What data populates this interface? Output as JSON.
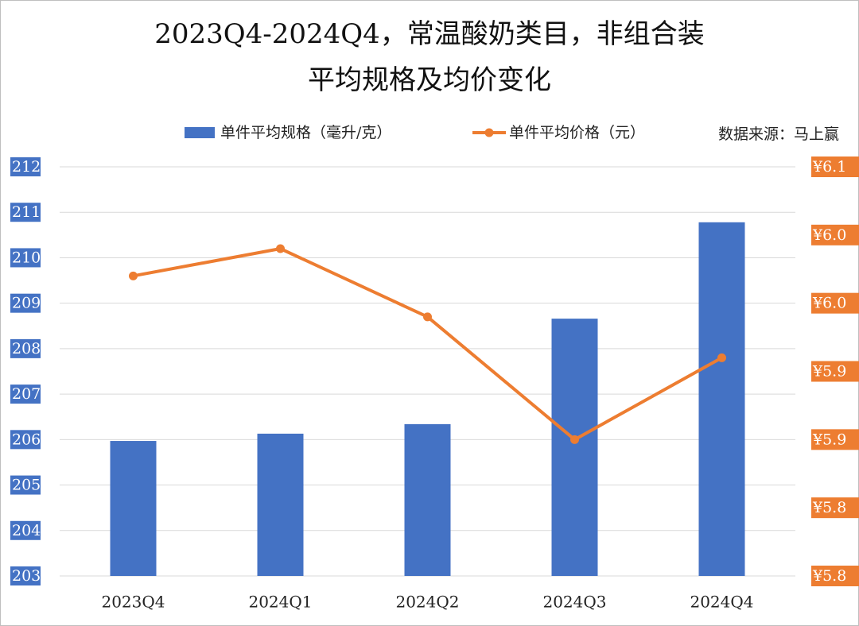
{
  "chart_data": {
    "type": "bar-line",
    "title": "2023Q4-2024Q4，常温酸奶类目，非组合装",
    "subtitle": "平均规格及均价变化",
    "source": "数据来源：马上赢",
    "categories": [
      "2023Q4",
      "2024Q1",
      "2024Q2",
      "2024Q3",
      "2024Q4"
    ],
    "series": [
      {
        "name": "单件平均规格（毫升/克）",
        "type": "bar",
        "color": "#4472c4",
        "values": [
          205.97,
          206.13,
          206.34,
          208.66,
          210.78
        ]
      },
      {
        "name": "单件平均价格（元）",
        "type": "line",
        "axis": "y2",
        "color": "#ed7d31",
        "values": [
          6.02,
          6.04,
          5.99,
          5.9,
          5.96
        ]
      }
    ],
    "ylim": [
      203,
      212
    ],
    "yticks": [
      203,
      204,
      205,
      206,
      207,
      208,
      209,
      210,
      211,
      212
    ],
    "y2lim": [
      5.8,
      6.1
    ],
    "y2ticks": [
      {
        "value": 5.8,
        "label": "¥5.8"
      },
      {
        "value": 5.85,
        "label": "¥5.8"
      },
      {
        "value": 5.9,
        "label": "¥5.9"
      },
      {
        "value": 5.95,
        "label": "¥5.9"
      },
      {
        "value": 6.0,
        "label": "¥6.0"
      },
      {
        "value": 6.05,
        "label": "¥6.0"
      },
      {
        "value": 6.1,
        "label": "¥6.1"
      }
    ],
    "grid": true
  }
}
